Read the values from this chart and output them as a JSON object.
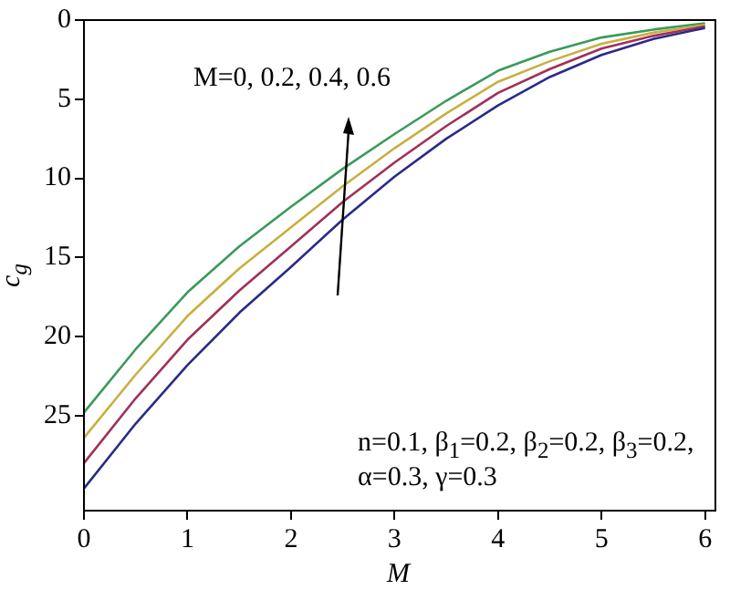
{
  "chart_data": {
    "type": "line",
    "xlabel": "M",
    "ylabel": "c$_{g}$",
    "x": [
      0,
      0.5,
      1,
      1.5,
      2,
      2.5,
      3,
      3.5,
      4,
      4.5,
      5,
      5.5,
      6
    ],
    "series": [
      {
        "color": "#2a2a8a",
        "values": [
          29.6,
          25.5,
          21.8,
          18.5,
          15.6,
          12.6,
          9.9,
          7.5,
          5.4,
          3.6,
          2.2,
          1.2,
          0.5
        ]
      },
      {
        "color": "#a0305a",
        "values": [
          28.0,
          23.9,
          20.2,
          17.1,
          14.3,
          11.5,
          9.0,
          6.7,
          4.6,
          3.1,
          1.8,
          1.0,
          0.4
        ]
      },
      {
        "color": "#c8b040",
        "values": [
          26.4,
          22.4,
          18.7,
          15.7,
          13.1,
          10.5,
          8.1,
          5.9,
          3.9,
          2.6,
          1.5,
          0.8,
          0.3
        ]
      },
      {
        "color": "#3a9a5a",
        "values": [
          24.8,
          20.8,
          17.2,
          14.3,
          11.8,
          9.4,
          7.2,
          5.1,
          3.2,
          2.0,
          1.1,
          0.6,
          0.2
        ]
      }
    ],
    "xlim": [
      0,
      6.1
    ],
    "xticks": [
      0,
      1,
      2,
      3,
      4,
      5,
      6
    ],
    "ylim": [
      31,
      0
    ],
    "yticks": [
      0,
      5,
      10,
      15,
      20,
      25
    ],
    "grid": false,
    "legend": false,
    "marker": "none",
    "line_style": "solid",
    "annotations": [
      "M=0, 0.2, 0.4, 0.6",
      "n=0.1, β$_{1}$=0.2, β$_{2}$=0.2, β$_{3}$=0.2,",
      "α=0.3, γ=0.3"
    ]
  }
}
